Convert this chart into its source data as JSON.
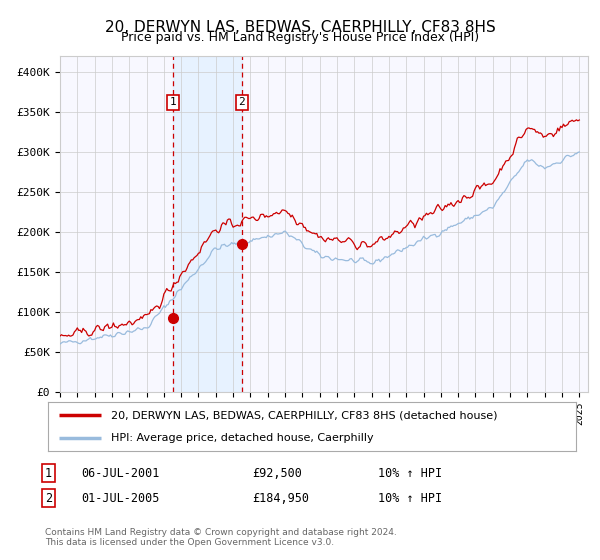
{
  "title": "20, DERWYN LAS, BEDWAS, CAERPHILLY, CF83 8HS",
  "subtitle": "Price paid vs. HM Land Registry's House Price Index (HPI)",
  "ylim": [
    0,
    420000
  ],
  "yticks": [
    0,
    50000,
    100000,
    150000,
    200000,
    250000,
    300000,
    350000,
    400000
  ],
  "background_color": "#ffffff",
  "plot_bg_color": "#f8f8ff",
  "grid_color": "#cccccc",
  "purchase1_date": 2001.54,
  "purchase1_price": 92500,
  "purchase1_label": "1",
  "purchase2_date": 2005.5,
  "purchase2_price": 184950,
  "purchase2_label": "2",
  "legend_entry1": "20, DERWYN LAS, BEDWAS, CAERPHILLY, CF83 8HS (detached house)",
  "legend_entry2": "HPI: Average price, detached house, Caerphilly",
  "table_row1": [
    "1",
    "06-JUL-2001",
    "£92,500",
    "10% ↑ HPI"
  ],
  "table_row2": [
    "2",
    "01-JUL-2005",
    "£184,950",
    "10% ↑ HPI"
  ],
  "footnote": "Contains HM Land Registry data © Crown copyright and database right 2024.\nThis data is licensed under the Open Government Licence v3.0.",
  "line_color_property": "#cc0000",
  "line_color_hpi": "#99bbdd",
  "shade_color": "#ddeeff"
}
